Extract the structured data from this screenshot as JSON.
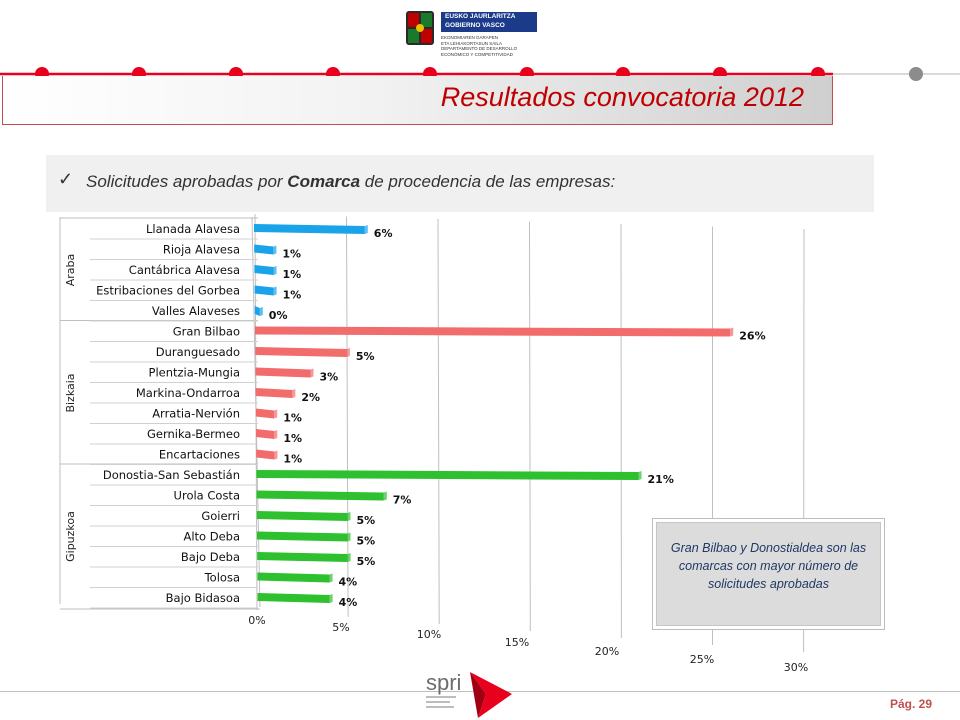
{
  "header": {
    "gov_line1": "EUSKO JAURLARITZA",
    "gov_line2": "GOBIERNO VASCO",
    "gov_dept_1": "EKONOMIAREN GARAPEN",
    "gov_dept_2": "ETA LEHIAKORTASUN SAILA",
    "gov_dept_3": "DEPARTAMENTO DE DESARROLLO",
    "gov_dept_4": "ECONÓMICO Y COMPETITIVIDAD",
    "title": "Resultados  convocatoria 2012",
    "accent_color": "#e8001c"
  },
  "subtitle": {
    "prefix": "Solicitudes aprobadas por ",
    "bold": "Comarca",
    "suffix": " de procedencia de las empresas:"
  },
  "chart_data": {
    "type": "bar",
    "orientation": "horizontal",
    "groups": [
      {
        "name": "Araba",
        "color": "#1aa3e8",
        "categories": [
          "Llanada Alavesa",
          "Rioja Alavesa",
          "Cantábrica Alavesa",
          "Estribaciones del Gorbea",
          "Valles Alaveses"
        ],
        "values": [
          6,
          1,
          1,
          1,
          0
        ]
      },
      {
        "name": "Bizkaia",
        "color": "#f26c6c",
        "categories": [
          "Gran Bilbao",
          "Duranguesado",
          "Plentzia-Mungia",
          "Markina-Ondarroa",
          "Arratia-Nervión",
          "Gernika-Bermeo",
          "Encartaciones"
        ],
        "values": [
          26,
          5,
          3,
          2,
          1,
          1,
          1
        ]
      },
      {
        "name": "Gipuzkoa",
        "color": "#2ec02e",
        "categories": [
          "Donostia-San Sebastián",
          "Urola Costa",
          "Goierri",
          "Alto Deba",
          "Bajo Deba",
          "Tolosa",
          "Bajo Bidasoa"
        ],
        "values": [
          21,
          7,
          5,
          5,
          5,
          4,
          4
        ]
      }
    ],
    "value_labels": {
      "Araba": [
        "6%",
        "1%",
        "1%",
        "1%",
        "0%"
      ],
      "Bizkaia": [
        "26%",
        "5%",
        "3%",
        "2%",
        "1%",
        "1%",
        "1%"
      ],
      "Gipuzkoa": [
        "21%",
        "7%",
        "5%",
        "5%",
        "5%",
        "4%",
        "4%"
      ]
    },
    "x_ticks": [
      "0%",
      "5%",
      "10%",
      "15%",
      "20%",
      "25%",
      "30%"
    ],
    "xlim": [
      0,
      30
    ],
    "grid": true,
    "projection": "3d-perspective"
  },
  "note": {
    "text": "Gran Bilbao y Donostialdea son las comarcas con mayor número de solicitudes aprobadas"
  },
  "footer": {
    "logo_text": "spri",
    "page_label": "Pág. 29"
  }
}
